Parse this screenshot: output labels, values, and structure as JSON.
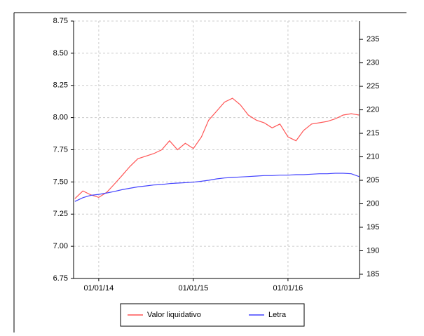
{
  "chart_data": {
    "type": "line",
    "x": [
      "2013-10-01",
      "2013-11-01",
      "2013-12-01",
      "2014-01-01",
      "2014-02-01",
      "2014-03-01",
      "2014-04-01",
      "2014-05-01",
      "2014-06-01",
      "2014-07-01",
      "2014-08-01",
      "2014-09-01",
      "2014-10-01",
      "2014-11-01",
      "2014-12-01",
      "2015-01-01",
      "2015-02-01",
      "2015-03-01",
      "2015-04-01",
      "2015-05-01",
      "2015-06-01",
      "2015-07-01",
      "2015-08-01",
      "2015-09-01",
      "2015-10-01",
      "2015-11-01",
      "2015-12-01",
      "2016-01-01",
      "2016-02-01",
      "2016-03-01",
      "2016-04-01",
      "2016-05-01",
      "2016-06-01",
      "2016-07-01",
      "2016-08-01",
      "2016-09-01",
      "2016-10-01"
    ],
    "series": [
      {
        "name": "Valor liquidativo",
        "color": "#ff5555",
        "values": [
          7.37,
          7.43,
          7.4,
          7.38,
          7.42,
          7.48,
          7.55,
          7.62,
          7.68,
          7.7,
          7.72,
          7.75,
          7.82,
          7.75,
          7.8,
          7.76,
          7.85,
          7.98,
          8.05,
          8.12,
          8.15,
          8.1,
          8.02,
          7.98,
          7.96,
          7.92,
          7.95,
          7.85,
          7.82,
          7.9,
          7.95,
          7.96,
          7.97,
          7.99,
          8.02,
          8.03,
          8.02
        ]
      },
      {
        "name": "Letra",
        "color": "#4444ff",
        "axis": "y2",
        "values": [
          200.5,
          201.3,
          201.8,
          202.0,
          202.3,
          202.6,
          203.0,
          203.3,
          203.6,
          203.8,
          204.0,
          204.1,
          204.3,
          204.4,
          204.5,
          204.6,
          204.8,
          205.0,
          205.3,
          205.5,
          205.6,
          205.7,
          205.8,
          205.9,
          206.0,
          206.0,
          206.1,
          206.1,
          206.2,
          206.2,
          206.3,
          206.4,
          206.4,
          206.5,
          206.5,
          206.4,
          205.8
        ]
      }
    ],
    "xlim": [
      "2013-09-26",
      "2016-10-03"
    ],
    "xticks": [
      {
        "value": "2014-01-01",
        "label": "01/01/14"
      },
      {
        "value": "2015-01-01",
        "label": "01/01/15"
      },
      {
        "value": "2016-01-01",
        "label": "01/01/16"
      }
    ],
    "ylim": [
      6.75,
      8.75
    ],
    "yticks": [
      {
        "value": 6.75,
        "label": "6.75"
      },
      {
        "value": 7,
        "label": "7.00"
      },
      {
        "value": 7.25,
        "label": "7.25"
      },
      {
        "value": 7.5,
        "label": "7.50"
      },
      {
        "value": 7.75,
        "label": "7.75"
      },
      {
        "value": 8,
        "label": "8.00"
      },
      {
        "value": 8.25,
        "label": "8.25"
      },
      {
        "value": 8.5,
        "label": "8.50"
      },
      {
        "value": 8.75,
        "label": "8.75"
      }
    ],
    "y2lim": [
      184.1,
      238.9
    ],
    "y2ticks": [
      185,
      190,
      195,
      200,
      205,
      210,
      215,
      220,
      225,
      230,
      235
    ],
    "grid": true
  }
}
